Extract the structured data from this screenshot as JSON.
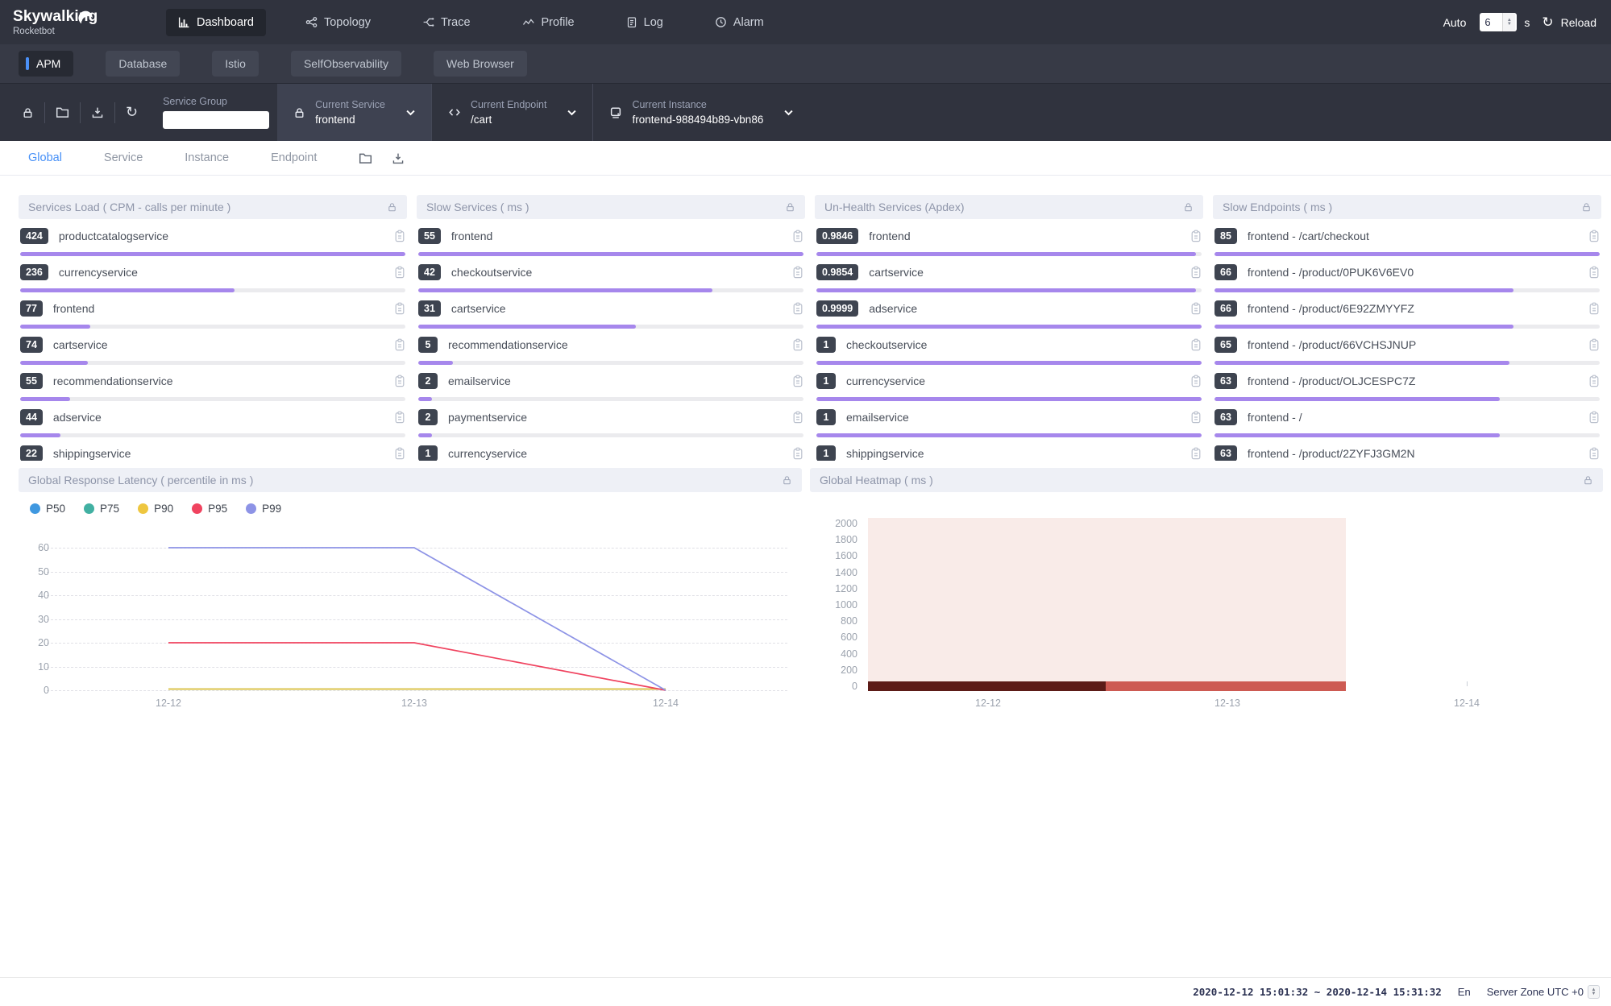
{
  "header": {
    "brand": "Skywalking",
    "brand_sub": "Rocketbot",
    "nav": [
      {
        "label": "Dashboard",
        "icon": "bar-chart-icon",
        "active": true
      },
      {
        "label": "Topology",
        "icon": "topology-icon",
        "active": false
      },
      {
        "label": "Trace",
        "icon": "trace-icon",
        "active": false
      },
      {
        "label": "Profile",
        "icon": "profile-icon",
        "active": false
      },
      {
        "label": "Log",
        "icon": "log-icon",
        "active": false
      },
      {
        "label": "Alarm",
        "icon": "alarm-icon",
        "active": false
      }
    ],
    "auto": {
      "label": "Auto",
      "value": "6",
      "unit": "s"
    },
    "reload_label": "Reload"
  },
  "workspace_tabs": [
    {
      "label": "APM",
      "active": true
    },
    {
      "label": "Database",
      "active": false
    },
    {
      "label": "Istio",
      "active": false
    },
    {
      "label": "SelfObservability",
      "active": false
    },
    {
      "label": "Web Browser",
      "active": false
    }
  ],
  "toolbar": {
    "actions": [
      "lock-icon",
      "folder-icon",
      "import-icon",
      "refresh-icon"
    ],
    "service_group": {
      "label": "Service Group",
      "value": ""
    },
    "selectors": [
      {
        "icon": "lock-icon",
        "label": "Current Service",
        "value": "frontend",
        "highlighted": true
      },
      {
        "icon": "code-icon",
        "label": "Current Endpoint",
        "value": "/cart",
        "highlighted": false
      },
      {
        "icon": "instance-icon",
        "label": "Current Instance",
        "value": "frontend-988494b89-vbn86",
        "highlighted": false
      }
    ]
  },
  "view_tabs": [
    {
      "label": "Global",
      "active": true
    },
    {
      "label": "Service",
      "active": false
    },
    {
      "label": "Instance",
      "active": false
    },
    {
      "label": "Endpoint",
      "active": false
    }
  ],
  "panels": [
    {
      "title": "Services Load ( CPM - calls per minute )",
      "items": [
        {
          "value": "424",
          "name": "productcatalogservice"
        },
        {
          "value": "236",
          "name": "currencyservice"
        },
        {
          "value": "77",
          "name": "frontend"
        },
        {
          "value": "74",
          "name": "cartservice"
        },
        {
          "value": "55",
          "name": "recommendationservice"
        },
        {
          "value": "44",
          "name": "adservice"
        },
        {
          "value": "22",
          "name": "shippingservice"
        }
      ]
    },
    {
      "title": "Slow Services ( ms )",
      "items": [
        {
          "value": "55",
          "name": "frontend"
        },
        {
          "value": "42",
          "name": "checkoutservice"
        },
        {
          "value": "31",
          "name": "cartservice"
        },
        {
          "value": "5",
          "name": "recommendationservice"
        },
        {
          "value": "2",
          "name": "emailservice"
        },
        {
          "value": "2",
          "name": "paymentservice"
        },
        {
          "value": "1",
          "name": "currencyservice"
        }
      ]
    },
    {
      "title": "Un-Health Services (Apdex)",
      "items": [
        {
          "value": "0.9846",
          "name": "frontend"
        },
        {
          "value": "0.9854",
          "name": "cartservice"
        },
        {
          "value": "0.9999",
          "name": "adservice"
        },
        {
          "value": "1",
          "name": "checkoutservice"
        },
        {
          "value": "1",
          "name": "currencyservice"
        },
        {
          "value": "1",
          "name": "emailservice"
        },
        {
          "value": "1",
          "name": "shippingservice"
        }
      ]
    },
    {
      "title": "Slow Endpoints ( ms )",
      "items": [
        {
          "value": "85",
          "name": "frontend - /cart/checkout"
        },
        {
          "value": "66",
          "name": "frontend - /product/0PUK6V6EV0"
        },
        {
          "value": "66",
          "name": "frontend - /product/6E92ZMYYFZ"
        },
        {
          "value": "65",
          "name": "frontend - /product/66VCHSJNUP"
        },
        {
          "value": "63",
          "name": "frontend - /product/OLJCESPC7Z"
        },
        {
          "value": "63",
          "name": "frontend - /"
        },
        {
          "value": "63",
          "name": "frontend - /product/2ZYFJ3GM2N"
        }
      ]
    }
  ],
  "bar_color": "#a687ec",
  "chart_data": [
    {
      "type": "line",
      "title": "Global Response Latency ( percentile in ms )",
      "x": [
        "12-12",
        "12-13",
        "12-14"
      ],
      "series": [
        {
          "name": "P50",
          "color": "#3f98e0",
          "values": [
            0.5,
            0.5,
            0.5
          ]
        },
        {
          "name": "P75",
          "color": "#41b0a2",
          "values": [
            0.5,
            0.5,
            0.5
          ]
        },
        {
          "name": "P90",
          "color": "#eec63f",
          "values": [
            0.5,
            0.5,
            0.5
          ]
        },
        {
          "name": "P95",
          "color": "#f0435f",
          "values": [
            20,
            20,
            0
          ]
        },
        {
          "name": "P99",
          "color": "#8d93e6",
          "values": [
            60,
            60,
            0
          ]
        }
      ],
      "ylim": [
        0,
        60
      ],
      "yticks": [
        0,
        10,
        20,
        30,
        40,
        50,
        60
      ],
      "grid": "dashed horizontal",
      "legend_position": "top-left"
    },
    {
      "type": "heatmap",
      "title": "Global Heatmap ( ms )",
      "x_ticks": [
        "12-12",
        "12-13",
        "12-14"
      ],
      "yticks": [
        2000,
        1800,
        1600,
        1400,
        1200,
        1000,
        800,
        600,
        400,
        200,
        0
      ],
      "background_color": "#f9ebe8",
      "bottom_row_segments": [
        {
          "color": "#5c1b17",
          "span": 0.497,
          "meaning": "high density at 0 ms bucket, 12-12 to mid-range"
        },
        {
          "color": "#cd5a52",
          "span": 0.503,
          "meaning": "medium density at 0 ms bucket, mid-range to 12-13+"
        }
      ],
      "data_extent_note": "heatmap cells cover only left two-thirds of axis; 12-14 tick has no data"
    }
  ],
  "footer": {
    "time_range": "2020-12-12 15:01:32 ~ 2020-12-14 15:31:32",
    "lang": "En",
    "server_zone": "Server Zone UTC +0"
  }
}
